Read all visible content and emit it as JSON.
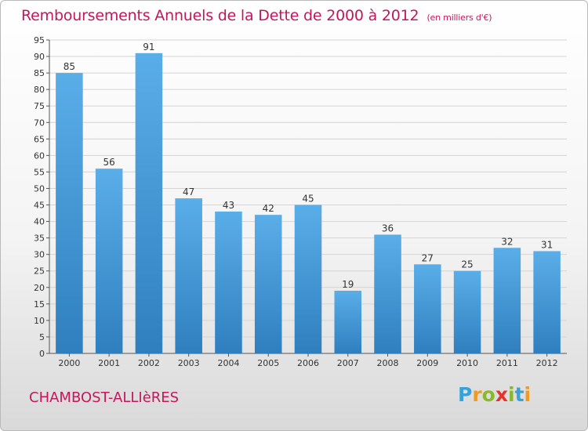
{
  "header": {
    "title": "Remboursements Annuels de la Dette de 2000 à 2012",
    "unit": "(en milliers d'€)"
  },
  "footer": {
    "commune": "CHAMBOST-ALLIèRES",
    "logo_text": "Proxiti",
    "logo_colors": [
      "#3aa0d8",
      "#f29a1d",
      "#89b92b",
      "#e5332a"
    ]
  },
  "chart_data": {
    "type": "bar",
    "title": "Remboursements Annuels de la Dette de 2000 à 2012",
    "subtitle": "(en milliers d'€)",
    "categories": [
      "2000",
      "2001",
      "2002",
      "2003",
      "2004",
      "2005",
      "2006",
      "2007",
      "2008",
      "2009",
      "2010",
      "2011",
      "2012"
    ],
    "values": [
      85,
      56,
      91,
      47,
      43,
      42,
      45,
      19,
      36,
      27,
      25,
      32,
      31
    ],
    "ylim": [
      0,
      95
    ],
    "yticks": [
      0,
      5,
      10,
      15,
      20,
      25,
      30,
      35,
      40,
      45,
      50,
      55,
      60,
      65,
      70,
      75,
      80,
      85,
      90,
      95
    ],
    "grid": true,
    "bar_color": "#3f97dc"
  }
}
